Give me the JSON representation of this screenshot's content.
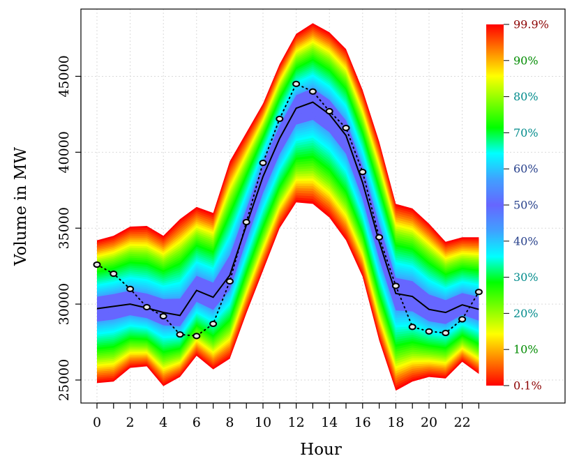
{
  "chart_data": {
    "type": "area",
    "xlabel": "Hour",
    "ylabel": "Volume in MW",
    "xlim": [
      -1,
      24
    ],
    "ylim": [
      24000,
      49000
    ],
    "x_ticks": [
      0,
      2,
      4,
      6,
      8,
      10,
      12,
      14,
      16,
      18,
      20,
      22
    ],
    "x_minor_ticks": [
      1,
      3,
      5,
      7,
      9,
      11,
      13,
      15,
      17,
      19,
      21,
      23
    ],
    "y_ticks": [
      25000,
      30000,
      35000,
      40000,
      45000
    ],
    "grid": true,
    "x": [
      0,
      1,
      2,
      3,
      4,
      5,
      6,
      7,
      8,
      9,
      10,
      11,
      12,
      13,
      14,
      15,
      16,
      17,
      18,
      19,
      20,
      21,
      22,
      23
    ],
    "quantile_band": {
      "lower": [
        24800,
        24900,
        25800,
        25900,
        24600,
        25200,
        26600,
        25700,
        26400,
        29400,
        32200,
        35000,
        36700,
        36600,
        35700,
        34200,
        31800,
        27600,
        24300,
        24900,
        25200,
        25100,
        26200,
        25400
      ],
      "median": [
        29700,
        29850,
        30000,
        29750,
        29450,
        29250,
        30900,
        30450,
        31900,
        35200,
        38400,
        40900,
        42900,
        43300,
        42500,
        41100,
        38000,
        34100,
        30700,
        30500,
        29650,
        29450,
        29950,
        29650
      ],
      "upper": [
        34200,
        34500,
        35100,
        35150,
        34500,
        35600,
        36400,
        36000,
        39400,
        41300,
        43200,
        45800,
        47800,
        48500,
        47900,
        46800,
        44100,
        40700,
        36600,
        36300,
        35300,
        34100,
        34400,
        34400
      ]
    },
    "series": [
      {
        "name": "",
        "style": "solid-line",
        "color": "#000000",
        "values": [
          29700,
          29850,
          30000,
          29750,
          29450,
          29250,
          30900,
          30450,
          31900,
          35200,
          38400,
          40900,
          42900,
          43300,
          42500,
          41100,
          38000,
          34100,
          30700,
          30500,
          29650,
          29450,
          29950,
          29650
        ]
      },
      {
        "name": "",
        "style": "dotted-line-with-circles",
        "color": "#000000",
        "values": [
          32600,
          32000,
          31000,
          29800,
          29200,
          28000,
          27900,
          28700,
          31500,
          35400,
          39300,
          42200,
          44500,
          44000,
          42700,
          41600,
          38700,
          34400,
          31200,
          28500,
          28200,
          28100,
          29000,
          30800
        ]
      }
    ],
    "color_legend": {
      "position": "right",
      "labels": [
        {
          "text": "99.9%",
          "level": 0.999,
          "color": "#8b0000"
        },
        {
          "text": "90%",
          "level": 0.9,
          "color": "#008b00"
        },
        {
          "text": "80%",
          "level": 0.8,
          "color": "#008b8b"
        },
        {
          "text": "70%",
          "level": 0.7,
          "color": "#008b8b"
        },
        {
          "text": "60%",
          "level": 0.6,
          "color": "#27408b"
        },
        {
          "text": "50%",
          "level": 0.5,
          "color": "#27408b"
        },
        {
          "text": "40%",
          "level": 0.4,
          "color": "#27408b"
        },
        {
          "text": "30%",
          "level": 0.3,
          "color": "#008b8b"
        },
        {
          "text": "20%",
          "level": 0.2,
          "color": "#008b8b"
        },
        {
          "text": "10%",
          "level": 0.1,
          "color": "#008b00"
        },
        {
          "text": "0.1%",
          "level": 0.001,
          "color": "#8b0000"
        }
      ],
      "gradient_colors": [
        "#ff0000",
        "#ff8000",
        "#ffff00",
        "#80ff00",
        "#00ff00",
        "#00ffff",
        "#40a0ff",
        "#6666ff",
        "#40a0ff",
        "#00ffff",
        "#00ff00",
        "#80ff00",
        "#ffff00",
        "#ff8000",
        "#ff0000"
      ]
    }
  }
}
